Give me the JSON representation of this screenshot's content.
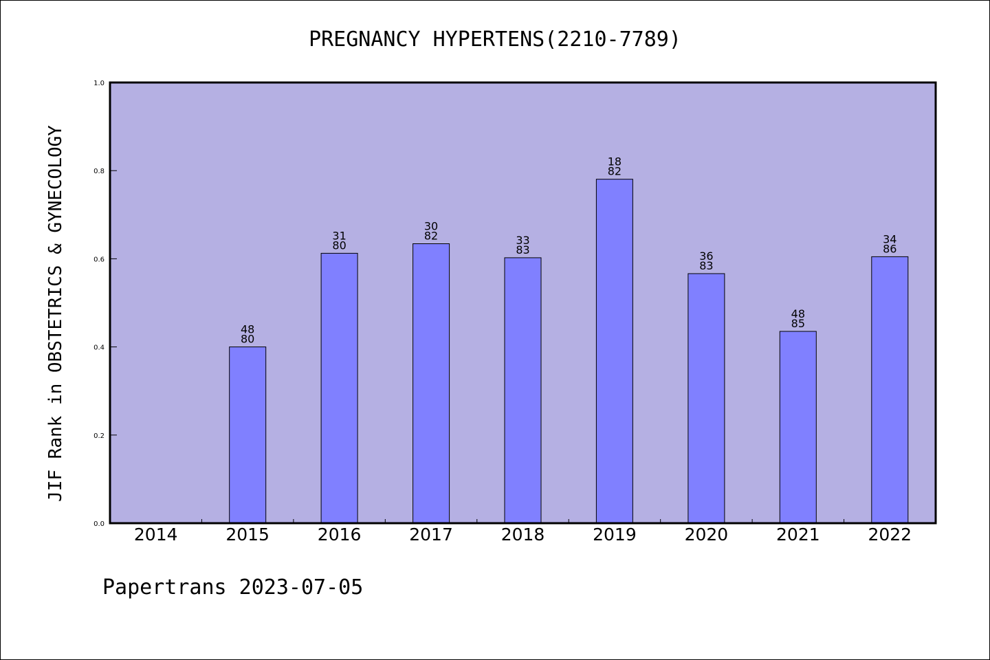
{
  "chart_data": {
    "type": "bar",
    "title": "PREGNANCY HYPERTENS(2210-7789)",
    "xlabel": "",
    "ylabel": "JIF Rank in OBSTETRICS & GYNECOLOGY",
    "ylim": [
      0,
      1.0
    ],
    "yticks": [
      "0.0",
      "0.2",
      "0.4",
      "0.6",
      "0.8",
      "1.0"
    ],
    "categories": [
      "2014",
      "2015",
      "2016",
      "2017",
      "2018",
      "2019",
      "2020",
      "2021",
      "2022"
    ],
    "values": [
      null,
      0.4,
      0.6125,
      0.6341,
      0.6024,
      0.7805,
      0.5663,
      0.4353,
      0.6047
    ],
    "rank_top": [
      "",
      "48",
      "31",
      "30",
      "33",
      "18",
      "36",
      "48",
      "34"
    ],
    "rank_bottom": [
      "",
      "80",
      "80",
      "82",
      "83",
      "82",
      "83",
      "85",
      "86"
    ],
    "grid": false,
    "colors": {
      "plot_background": "#b5b0e3",
      "bar_fill": "#8080ff",
      "bar_stroke": "#000000"
    }
  },
  "footer": {
    "text": "Papertrans 2023-07-05"
  }
}
